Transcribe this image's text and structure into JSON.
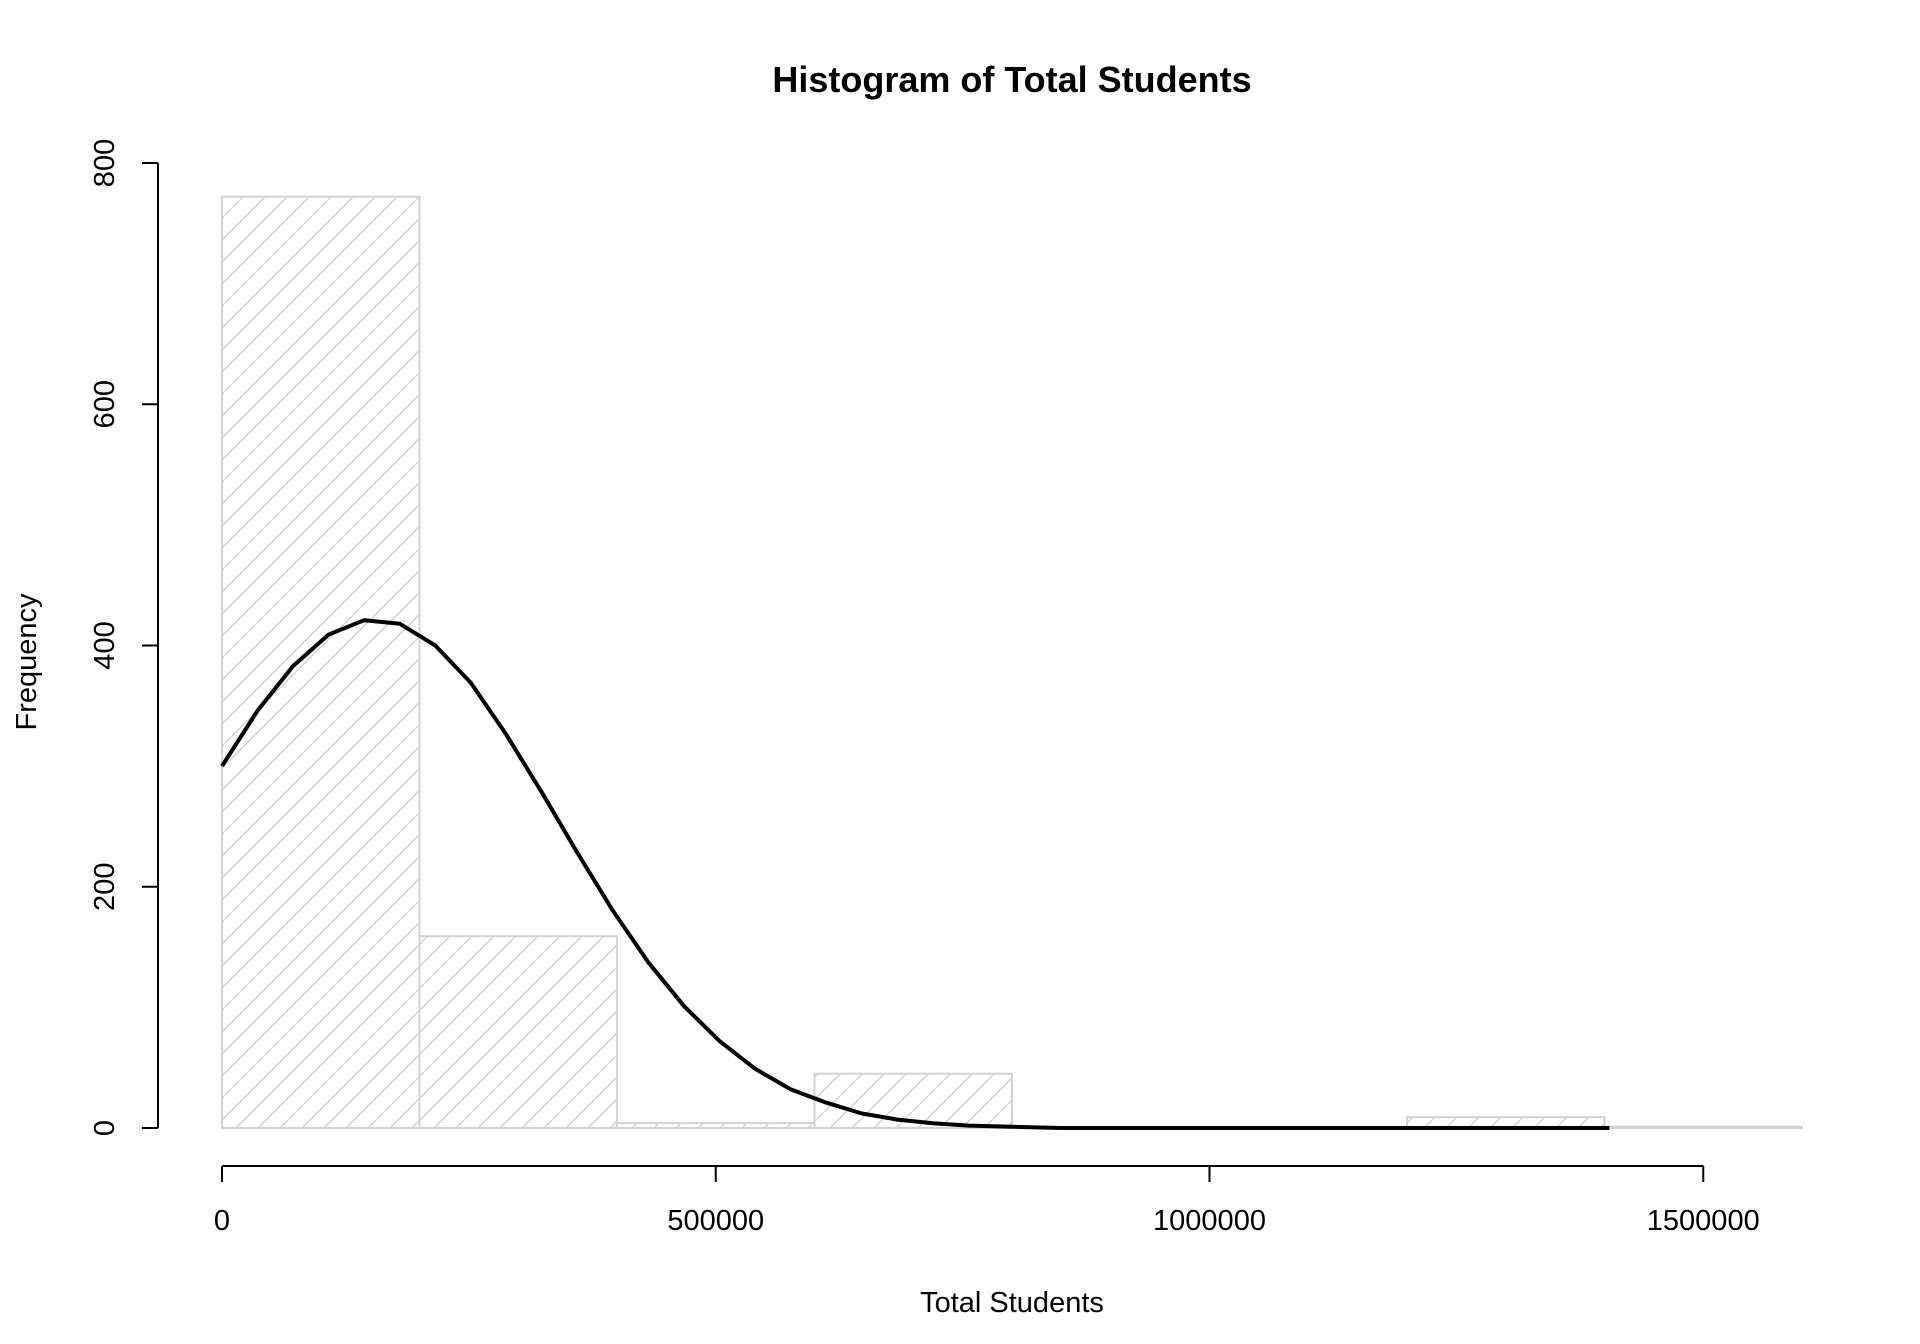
{
  "chart_data": {
    "type": "bar",
    "title": "Histogram of Total Students",
    "xlabel": "Total Students",
    "ylabel": "Frequency",
    "xlim": [
      0,
      1600000
    ],
    "ylim": [
      0,
      800
    ],
    "x_ticks": [
      0,
      500000,
      1000000,
      1500000
    ],
    "x_tick_labels": [
      "0",
      "500000",
      "1000000",
      "1500000"
    ],
    "y_ticks": [
      0,
      200,
      400,
      600,
      800
    ],
    "y_tick_labels": [
      "0",
      "200",
      "400",
      "600",
      "800"
    ],
    "grid": false,
    "bins": [
      {
        "start": 0,
        "end": 200000,
        "count": 772
      },
      {
        "start": 200000,
        "end": 400000,
        "count": 159
      },
      {
        "start": 400000,
        "end": 600000,
        "count": 4
      },
      {
        "start": 600000,
        "end": 800000,
        "count": 45
      },
      {
        "start": 800000,
        "end": 1000000,
        "count": 0
      },
      {
        "start": 1000000,
        "end": 1200000,
        "count": 0
      },
      {
        "start": 1200000,
        "end": 1400000,
        "count": 9
      },
      {
        "start": 1400000,
        "end": 1600000,
        "count": 1
      }
    ],
    "bar_color": "#d3d3d3",
    "curve_color": "#000000",
    "density_curve": [
      {
        "x": 0,
        "y": 300
      },
      {
        "x": 36000,
        "y": 346
      },
      {
        "x": 72000,
        "y": 383
      },
      {
        "x": 108000,
        "y": 409
      },
      {
        "x": 144000,
        "y": 421
      },
      {
        "x": 180000,
        "y": 418
      },
      {
        "x": 216000,
        "y": 400
      },
      {
        "x": 252000,
        "y": 369
      },
      {
        "x": 288000,
        "y": 326
      },
      {
        "x": 324000,
        "y": 278
      },
      {
        "x": 360000,
        "y": 228
      },
      {
        "x": 396000,
        "y": 180
      },
      {
        "x": 432000,
        "y": 137
      },
      {
        "x": 468000,
        "y": 101
      },
      {
        "x": 504000,
        "y": 72
      },
      {
        "x": 540000,
        "y": 49
      },
      {
        "x": 576000,
        "y": 32
      },
      {
        "x": 612000,
        "y": 21
      },
      {
        "x": 648000,
        "y": 12
      },
      {
        "x": 684000,
        "y": 7
      },
      {
        "x": 720000,
        "y": 4
      },
      {
        "x": 756000,
        "y": 2
      },
      {
        "x": 800000,
        "y": 1
      },
      {
        "x": 850000,
        "y": 0
      },
      {
        "x": 1000000,
        "y": 0
      },
      {
        "x": 1200000,
        "y": 0
      },
      {
        "x": 1405000,
        "y": 0
      }
    ]
  }
}
